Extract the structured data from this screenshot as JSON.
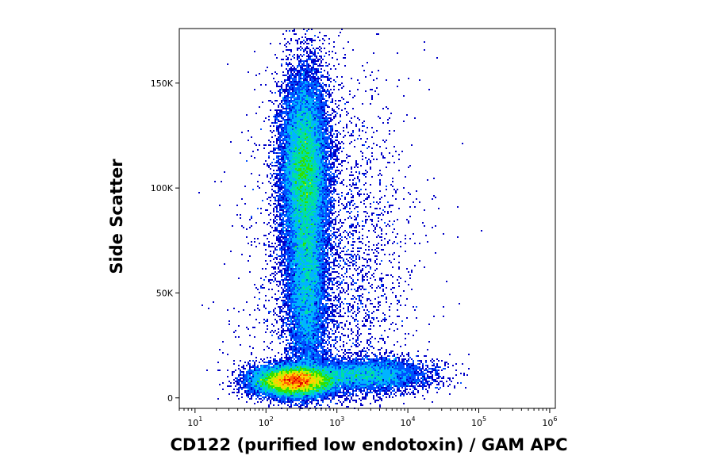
{
  "chart_data": {
    "type": "scatter",
    "subtype": "flow cytometry density dot plot (pseudocolor)",
    "xlabel": "CD122 (purified low endotoxin) / GAM APC",
    "ylabel": "Side Scatter",
    "x_scale": "log",
    "xlim": [
      6,
      1200000
    ],
    "ylim": [
      -5000,
      176000
    ],
    "x_ticks": [
      {
        "value": 10,
        "base": "10",
        "exp": "1"
      },
      {
        "value": 100,
        "base": "10",
        "exp": "2"
      },
      {
        "value": 1000,
        "base": "10",
        "exp": "3"
      },
      {
        "value": 10000,
        "base": "10",
        "exp": "4"
      },
      {
        "value": 100000,
        "base": "10",
        "exp": "5"
      },
      {
        "value": 1000000,
        "base": "10",
        "exp": "6"
      }
    ],
    "y_ticks": [
      {
        "value": 0,
        "label": "0"
      },
      {
        "value": 50000,
        "label": "50K"
      },
      {
        "value": 100000,
        "label": "100K"
      },
      {
        "value": 150000,
        "label": "150K"
      }
    ],
    "grid": false,
    "legend": "none",
    "density_colors": [
      "#0000c8",
      "#0050ff",
      "#00b4ff",
      "#00e0a0",
      "#30e000",
      "#c0f000",
      "#ffd000",
      "#ff6000",
      "#e00000"
    ],
    "populations": [
      {
        "x_center": 350,
        "x_spread_log10": 0.16,
        "y_center": 110000,
        "y_spread": 22000,
        "weight": 0.33
      },
      {
        "x_center": 380,
        "x_spread_log10": 0.14,
        "y_center": 55000,
        "y_spread": 25000,
        "weight": 0.18
      },
      {
        "x_center": 250,
        "x_spread_log10": 0.28,
        "y_center": 8000,
        "y_spread": 3500,
        "weight": 0.33
      },
      {
        "x_center": 2500,
        "x_spread_log10": 0.45,
        "y_center": 11000,
        "y_spread": 4000,
        "weight": 0.1
      },
      {
        "x_center": 800,
        "x_spread_log10": 0.55,
        "y_center": 60000,
        "y_spread": 45000,
        "weight": 0.06
      }
    ]
  }
}
